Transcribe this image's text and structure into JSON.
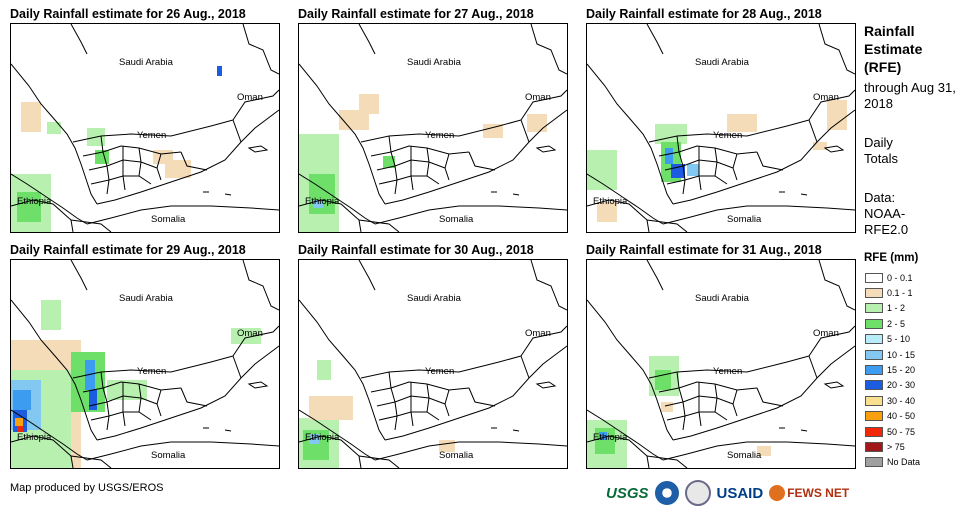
{
  "panels": [
    {
      "title": "Daily Rainfall estimate for 26 Aug., 2018"
    },
    {
      "title": "Daily Rainfall estimate for 27 Aug., 2018"
    },
    {
      "title": "Daily Rainfall estimate for 28 Aug., 2018"
    },
    {
      "title": "Daily Rainfall estimate for 29 Aug., 2018"
    },
    {
      "title": "Daily Rainfall estimate for 30 Aug., 2018"
    },
    {
      "title": "Daily Rainfall estimate for 31 Aug., 2018"
    }
  ],
  "map_labels": {
    "saudi": "Saudi Arabia",
    "oman": "Oman",
    "yemen": "Yemen",
    "ethiopia": "Ethiopia",
    "somalia": "Somalia"
  },
  "legend": {
    "title": "Rainfall Estimate (RFE)",
    "through": "through Aug 31, 2018",
    "daily": "Daily Totals",
    "data": "Data: NOAA-RFE2.0",
    "rfe_label": "RFE (mm)",
    "items": [
      {
        "label": "0 - 0.1",
        "color": "#ffffff"
      },
      {
        "label": "0.1 - 1",
        "color": "#f5dcb8"
      },
      {
        "label": "1 - 2",
        "color": "#b8f0b0"
      },
      {
        "label": "2 - 5",
        "color": "#6ee06a"
      },
      {
        "label": "5 - 10",
        "color": "#b8ecf8"
      },
      {
        "label": "10 - 15",
        "color": "#82c8f0"
      },
      {
        "label": "15 - 20",
        "color": "#3c9cf0"
      },
      {
        "label": "20 - 30",
        "color": "#1c5ce0"
      },
      {
        "label": "30 - 40",
        "color": "#f8e090"
      },
      {
        "label": "40 - 50",
        "color": "#f8a010"
      },
      {
        "label": "50 - 75",
        "color": "#f02808"
      },
      {
        "label": "> 75",
        "color": "#a01818"
      },
      {
        "label": "No Data",
        "color": "#a0a0a0"
      }
    ]
  },
  "credit": "Map produced by USGS/EROS",
  "logos": {
    "usgs": "USGS",
    "usaid": "USAID",
    "fews": "FEWS NET"
  }
}
